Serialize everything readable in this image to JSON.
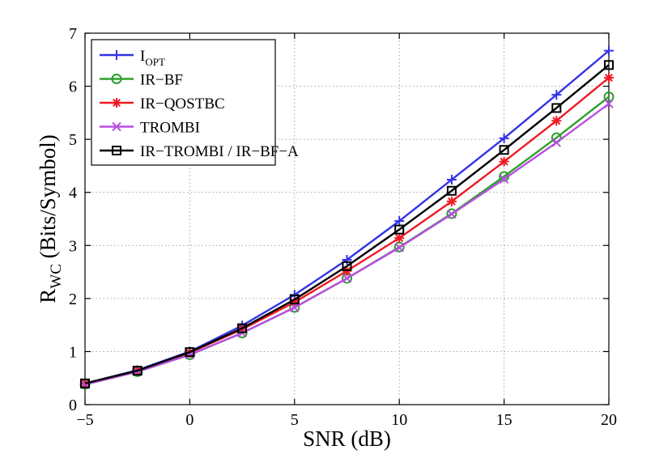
{
  "chart_data": {
    "type": "line",
    "title": "",
    "xlabel": "SNR (dB)",
    "ylabel": {
      "main": "R",
      "sub": "WC",
      "rest": " (Bits/Symbol)"
    },
    "xlim": [
      -5,
      20
    ],
    "ylim": [
      0,
      7
    ],
    "xticks": [
      -5,
      0,
      5,
      10,
      15,
      20
    ],
    "yticks": [
      0,
      1,
      2,
      3,
      4,
      5,
      6,
      7
    ],
    "xtick_labels": [
      "−5",
      "0",
      "5",
      "10",
      "15",
      "20"
    ],
    "ytick_labels": [
      "0",
      "1",
      "2",
      "3",
      "4",
      "5",
      "6",
      "7"
    ],
    "grid": true,
    "legend_position": "top-left",
    "x": [
      -5,
      -2.5,
      0,
      2.5,
      5,
      7.5,
      10,
      12.5,
      15,
      17.5,
      20
    ],
    "series": [
      {
        "name": "I",
        "name_sub": "OPT",
        "color": "#3333e6",
        "marker": "plus",
        "values": [
          0.4,
          0.65,
          1.0,
          1.49,
          2.07,
          2.73,
          3.46,
          4.24,
          5.02,
          5.84,
          6.67
        ]
      },
      {
        "name": "IR−BF",
        "name_sub": "",
        "color": "#2ca02c",
        "marker": "circle",
        "values": [
          0.38,
          0.62,
          0.94,
          1.35,
          1.83,
          2.38,
          2.97,
          3.6,
          4.3,
          5.03,
          5.8
        ]
      },
      {
        "name": "IR−QOSTBC",
        "name_sub": "",
        "color": "#ee1b24",
        "marker": "star",
        "values": [
          0.4,
          0.64,
          0.98,
          1.42,
          1.93,
          2.52,
          3.14,
          3.83,
          4.58,
          5.35,
          6.16
        ]
      },
      {
        "name": "TROMBI",
        "name_sub": "",
        "color": "#b84ee0",
        "marker": "x",
        "values": [
          0.38,
          0.62,
          0.94,
          1.35,
          1.83,
          2.38,
          2.96,
          3.59,
          4.25,
          4.94,
          5.67
        ]
      },
      {
        "name": "IR−TROMBI / IR−BF−A",
        "name_sub": "",
        "color": "#000000",
        "marker": "square",
        "values": [
          0.4,
          0.64,
          0.99,
          1.44,
          1.98,
          2.61,
          3.3,
          4.03,
          4.8,
          5.59,
          6.4
        ]
      }
    ]
  }
}
